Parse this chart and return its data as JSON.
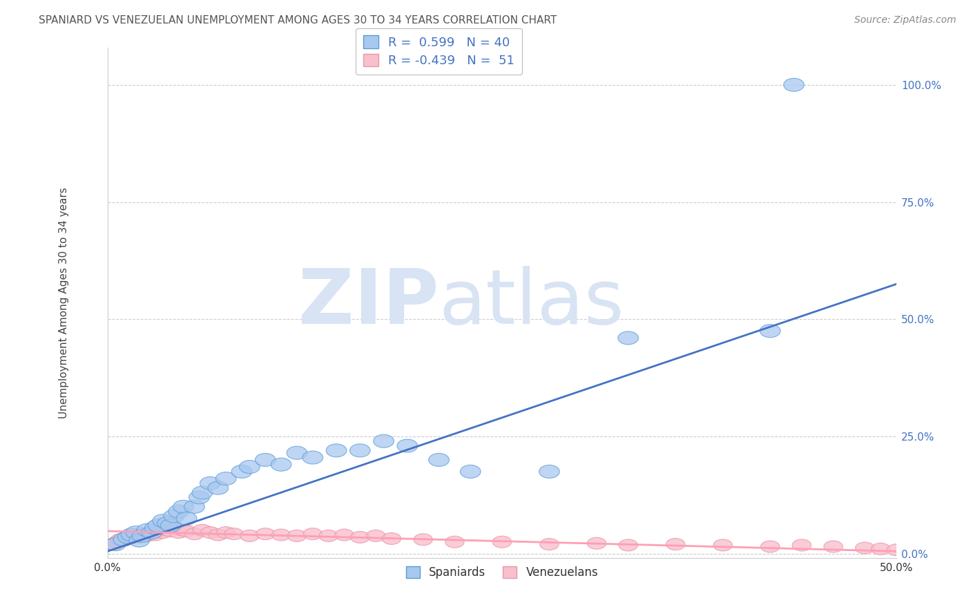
{
  "title": "SPANIARD VS VENEZUELAN UNEMPLOYMENT AMONG AGES 30 TO 34 YEARS CORRELATION CHART",
  "source": "Source: ZipAtlas.com",
  "ylabel": "Unemployment Among Ages 30 to 34 years",
  "xlabel": "",
  "xlim": [
    0.0,
    0.5
  ],
  "ylim": [
    -0.01,
    1.08
  ],
  "xticks": [
    0.0,
    0.1,
    0.2,
    0.3,
    0.4,
    0.5
  ],
  "xticklabels": [
    "0.0%",
    "",
    "",
    "",
    "",
    "50.0%"
  ],
  "yticks": [
    0.0,
    0.25,
    0.5,
    0.75,
    1.0
  ],
  "yticklabels": [
    "0.0%",
    "25.0%",
    "50.0%",
    "75.0%",
    "100.0%"
  ],
  "spaniard_color": "#A8C8F0",
  "spaniard_edge_color": "#5B9BD5",
  "venezuelan_color": "#F8C0CC",
  "venezuelan_edge_color": "#E896A8",
  "trendline_blue": "#4472C4",
  "trendline_pink": "#FF9EB5",
  "watermark_color": "#D8E4F4",
  "legend_R_blue": "0.599",
  "legend_N_blue": "40",
  "legend_R_pink": "-0.439",
  "legend_N_pink": "51",
  "spaniards_x": [
    0.005,
    0.01,
    0.013,
    0.015,
    0.018,
    0.02,
    0.022,
    0.025,
    0.028,
    0.03,
    0.032,
    0.035,
    0.038,
    0.04,
    0.042,
    0.045,
    0.048,
    0.05,
    0.055,
    0.058,
    0.06,
    0.065,
    0.07,
    0.075,
    0.085,
    0.09,
    0.1,
    0.11,
    0.12,
    0.13,
    0.145,
    0.16,
    0.175,
    0.19,
    0.21,
    0.23,
    0.28,
    0.33,
    0.42,
    0.435
  ],
  "spaniards_y": [
    0.02,
    0.03,
    0.035,
    0.04,
    0.045,
    0.028,
    0.038,
    0.05,
    0.045,
    0.055,
    0.06,
    0.07,
    0.065,
    0.06,
    0.08,
    0.09,
    0.1,
    0.075,
    0.1,
    0.12,
    0.13,
    0.15,
    0.14,
    0.16,
    0.175,
    0.185,
    0.2,
    0.19,
    0.215,
    0.205,
    0.22,
    0.22,
    0.24,
    0.23,
    0.2,
    0.175,
    0.175,
    0.46,
    0.475,
    1.0
  ],
  "venezuelans_x": [
    0.004,
    0.006,
    0.008,
    0.01,
    0.012,
    0.014,
    0.016,
    0.018,
    0.02,
    0.022,
    0.025,
    0.028,
    0.03,
    0.032,
    0.035,
    0.038,
    0.04,
    0.042,
    0.045,
    0.048,
    0.05,
    0.055,
    0.06,
    0.065,
    0.07,
    0.075,
    0.08,
    0.09,
    0.1,
    0.11,
    0.12,
    0.13,
    0.14,
    0.15,
    0.16,
    0.17,
    0.18,
    0.2,
    0.22,
    0.25,
    0.28,
    0.31,
    0.33,
    0.36,
    0.39,
    0.42,
    0.44,
    0.46,
    0.48,
    0.49,
    0.5
  ],
  "venezuelans_y": [
    0.02,
    0.025,
    0.03,
    0.028,
    0.035,
    0.032,
    0.038,
    0.04,
    0.035,
    0.042,
    0.038,
    0.045,
    0.04,
    0.05,
    0.045,
    0.05,
    0.048,
    0.055,
    0.045,
    0.05,
    0.048,
    0.042,
    0.05,
    0.045,
    0.04,
    0.045,
    0.042,
    0.038,
    0.042,
    0.04,
    0.038,
    0.042,
    0.038,
    0.04,
    0.035,
    0.038,
    0.032,
    0.03,
    0.025,
    0.025,
    0.02,
    0.022,
    0.018,
    0.02,
    0.018,
    0.015,
    0.018,
    0.015,
    0.012,
    0.01,
    0.008
  ],
  "blue_trend_x": [
    0.0,
    0.5
  ],
  "blue_trend_y": [
    0.005,
    0.575
  ],
  "pink_trend_x": [
    0.0,
    0.5
  ],
  "pink_trend_y": [
    0.048,
    0.005
  ],
  "background_color": "#FFFFFF",
  "grid_color": "#CCCCCC"
}
